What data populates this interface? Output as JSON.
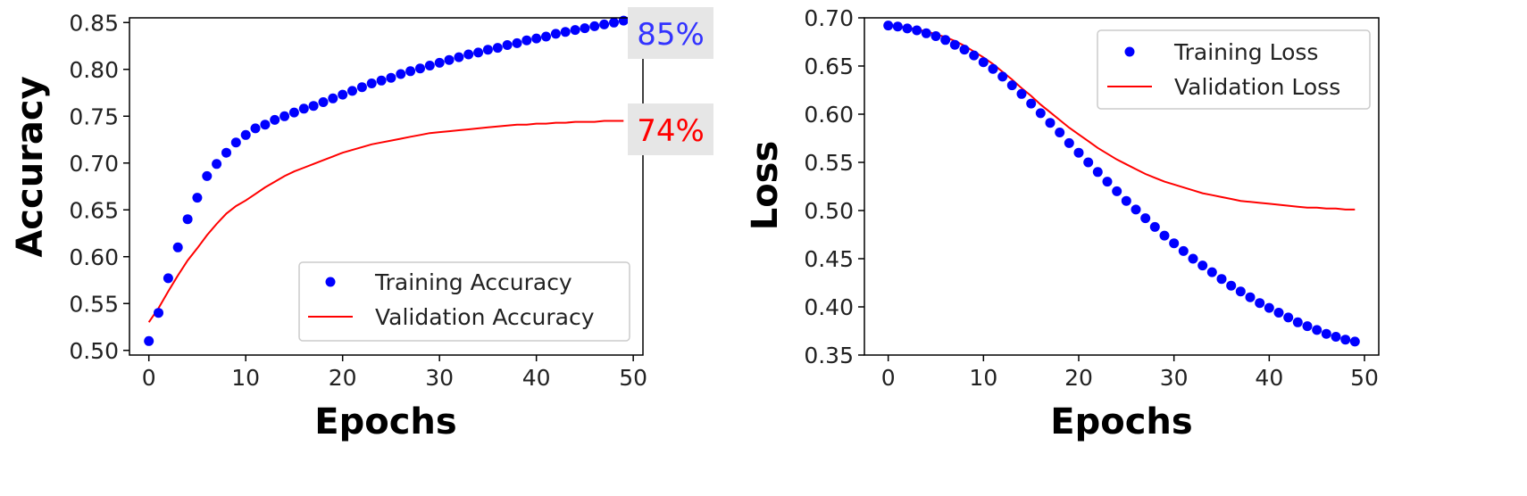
{
  "chart_data": [
    {
      "type": "line",
      "xlabel": "Epochs",
      "ylabel": "Accuracy",
      "xlim": [
        -2,
        51
      ],
      "ylim": [
        0.495,
        0.855
      ],
      "xticks": [
        "0",
        "10",
        "20",
        "30",
        "40",
        "50"
      ],
      "yticks": [
        "0.50",
        "0.55",
        "0.60",
        "0.65",
        "0.70",
        "0.75",
        "0.80",
        "0.85"
      ],
      "grid": false,
      "legend_position": "bottom-right",
      "annotations": [
        {
          "text": "85%",
          "color": "#3333ff"
        },
        {
          "text": "74%",
          "color": "#ff0000"
        }
      ],
      "x": [
        0,
        1,
        2,
        3,
        4,
        5,
        6,
        7,
        8,
        9,
        10,
        11,
        12,
        13,
        14,
        15,
        16,
        17,
        18,
        19,
        20,
        21,
        22,
        23,
        24,
        25,
        26,
        27,
        28,
        29,
        30,
        31,
        32,
        33,
        34,
        35,
        36,
        37,
        38,
        39,
        40,
        41,
        42,
        43,
        44,
        45,
        46,
        47,
        48,
        49
      ],
      "series": [
        {
          "name": "Training Accuracy",
          "style": "markers",
          "color": "#0000ff",
          "values": [
            0.51,
            0.54,
            0.577,
            0.61,
            0.64,
            0.663,
            0.686,
            0.699,
            0.711,
            0.722,
            0.73,
            0.737,
            0.741,
            0.746,
            0.75,
            0.754,
            0.758,
            0.761,
            0.765,
            0.769,
            0.773,
            0.777,
            0.781,
            0.785,
            0.788,
            0.791,
            0.795,
            0.798,
            0.801,
            0.804,
            0.807,
            0.81,
            0.813,
            0.816,
            0.818,
            0.821,
            0.823,
            0.826,
            0.828,
            0.831,
            0.833,
            0.835,
            0.838,
            0.84,
            0.842,
            0.844,
            0.846,
            0.848,
            0.85,
            0.852
          ]
        },
        {
          "name": "Validation Accuracy",
          "style": "line",
          "color": "#ff0000",
          "values": [
            0.53,
            0.545,
            0.563,
            0.58,
            0.596,
            0.609,
            0.623,
            0.635,
            0.646,
            0.654,
            0.66,
            0.667,
            0.674,
            0.68,
            0.686,
            0.691,
            0.695,
            0.699,
            0.703,
            0.707,
            0.711,
            0.714,
            0.717,
            0.72,
            0.722,
            0.724,
            0.726,
            0.728,
            0.73,
            0.732,
            0.733,
            0.734,
            0.735,
            0.736,
            0.737,
            0.738,
            0.739,
            0.74,
            0.741,
            0.741,
            0.742,
            0.742,
            0.743,
            0.743,
            0.744,
            0.744,
            0.744,
            0.745,
            0.745,
            0.745
          ]
        }
      ]
    },
    {
      "type": "line",
      "xlabel": "Epochs",
      "ylabel": "Loss",
      "xlim": [
        -2.5,
        51.5
      ],
      "ylim": [
        0.35,
        0.7
      ],
      "xticks": [
        "0",
        "10",
        "20",
        "30",
        "40",
        "50"
      ],
      "yticks": [
        "0.35",
        "0.40",
        "0.45",
        "0.50",
        "0.55",
        "0.60",
        "0.65",
        "0.70"
      ],
      "grid": false,
      "legend_position": "top-right",
      "x": [
        0,
        1,
        2,
        3,
        4,
        5,
        6,
        7,
        8,
        9,
        10,
        11,
        12,
        13,
        14,
        15,
        16,
        17,
        18,
        19,
        20,
        21,
        22,
        23,
        24,
        25,
        26,
        27,
        28,
        29,
        30,
        31,
        32,
        33,
        34,
        35,
        36,
        37,
        38,
        39,
        40,
        41,
        42,
        43,
        44,
        45,
        46,
        47,
        48,
        49
      ],
      "series": [
        {
          "name": "Training Loss",
          "style": "markers",
          "color": "#0000ff",
          "values": [
            0.692,
            0.691,
            0.689,
            0.687,
            0.684,
            0.681,
            0.677,
            0.672,
            0.667,
            0.661,
            0.654,
            0.647,
            0.639,
            0.63,
            0.621,
            0.611,
            0.601,
            0.591,
            0.581,
            0.57,
            0.56,
            0.55,
            0.54,
            0.53,
            0.52,
            0.51,
            0.501,
            0.492,
            0.483,
            0.474,
            0.466,
            0.458,
            0.45,
            0.443,
            0.436,
            0.429,
            0.422,
            0.416,
            0.41,
            0.404,
            0.399,
            0.394,
            0.389,
            0.384,
            0.38,
            0.376,
            0.372,
            0.369,
            0.366,
            0.364
          ]
        },
        {
          "name": "Validation Loss",
          "style": "line",
          "color": "#ff0000",
          "values": [
            0.692,
            0.691,
            0.69,
            0.688,
            0.686,
            0.683,
            0.68,
            0.676,
            0.671,
            0.665,
            0.659,
            0.652,
            0.644,
            0.636,
            0.627,
            0.619,
            0.61,
            0.602,
            0.594,
            0.586,
            0.579,
            0.572,
            0.565,
            0.559,
            0.553,
            0.548,
            0.543,
            0.538,
            0.534,
            0.53,
            0.527,
            0.524,
            0.521,
            0.518,
            0.516,
            0.514,
            0.512,
            0.51,
            0.509,
            0.508,
            0.507,
            0.506,
            0.505,
            0.504,
            0.503,
            0.503,
            0.502,
            0.502,
            0.501,
            0.501
          ]
        }
      ]
    }
  ]
}
